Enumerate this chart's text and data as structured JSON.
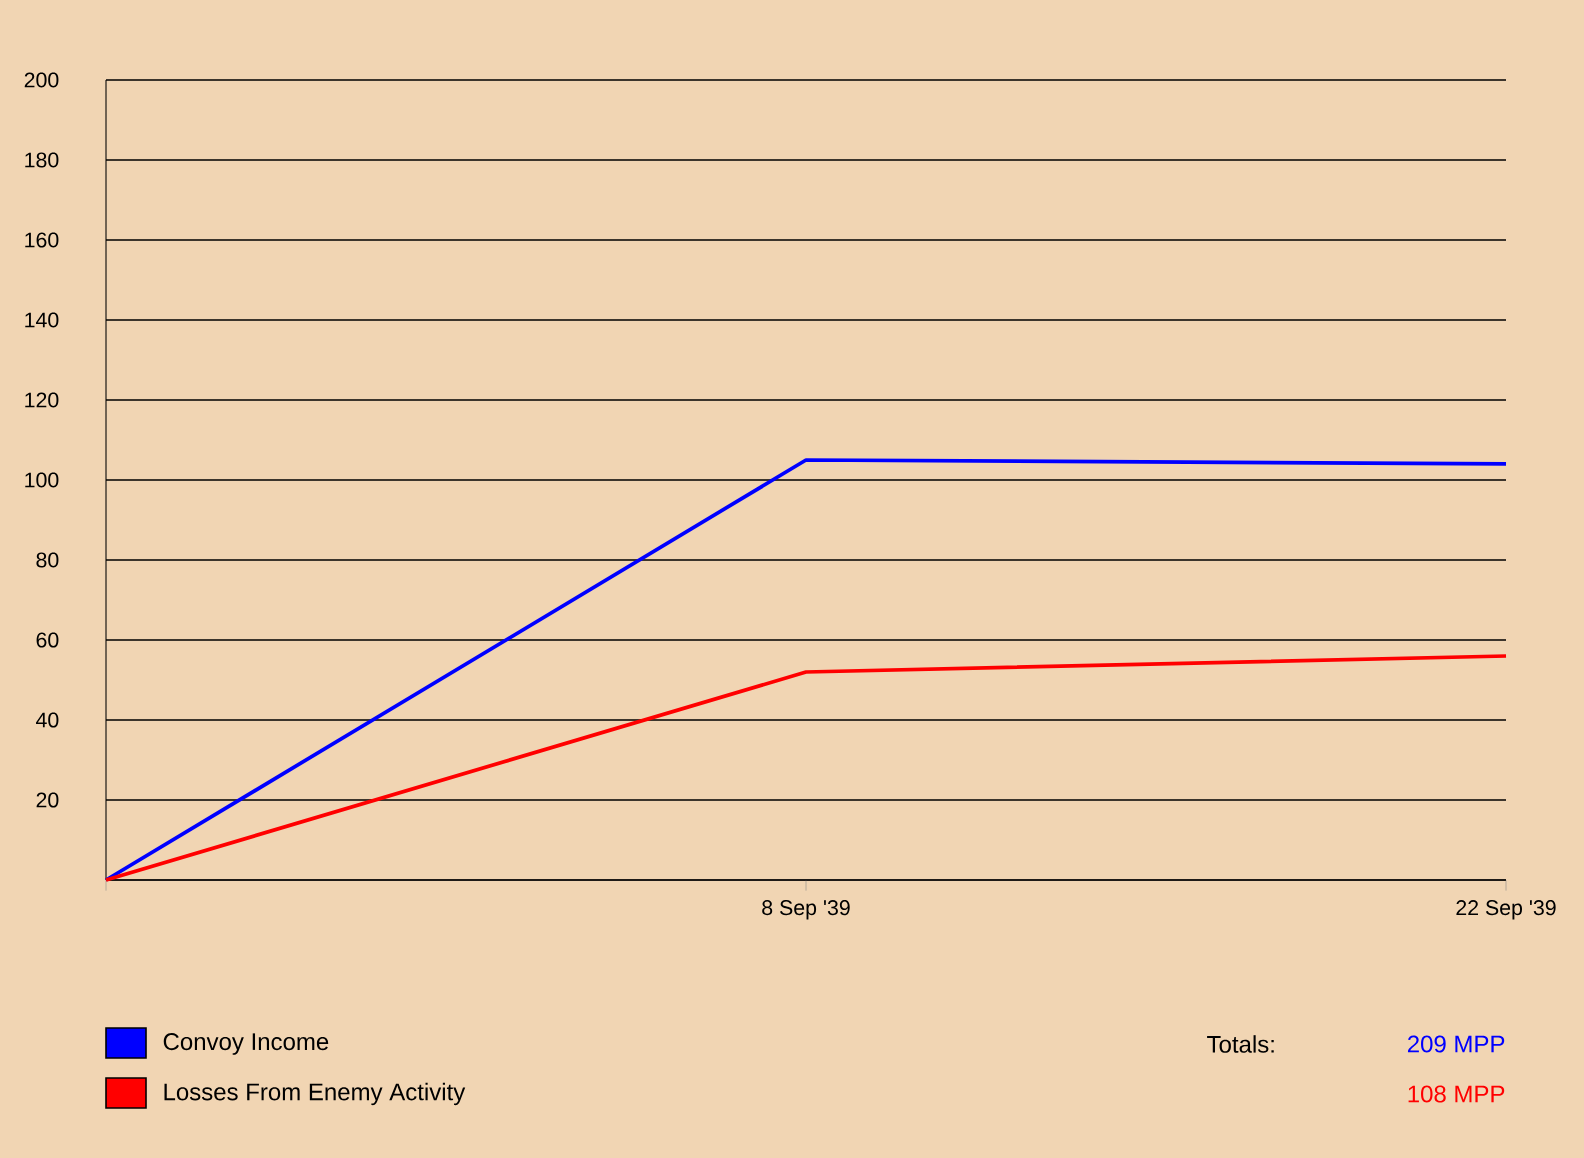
{
  "chart_data": {
    "type": "line",
    "categories": [
      null,
      "8 Sep '39",
      "22 Sep '39"
    ],
    "series": [
      {
        "name": "Convoy Income",
        "color": "#0000ff",
        "values": [
          0,
          105,
          104
        ]
      },
      {
        "name": "Losses From Enemy Activity",
        "color": "#ff0000",
        "values": [
          0,
          52,
          56
        ]
      }
    ],
    "ylim": [
      0,
      200
    ],
    "yticks": [
      {
        "value": 0,
        "label": null
      },
      20,
      40,
      60,
      80,
      100,
      120,
      140,
      160,
      180,
      200
    ],
    "grid": "y",
    "legend": "bottom",
    "marker": "none",
    "line_style": "solid",
    "annotations": [
      "Totals:",
      "209 MPP",
      "108 MPP"
    ]
  }
}
